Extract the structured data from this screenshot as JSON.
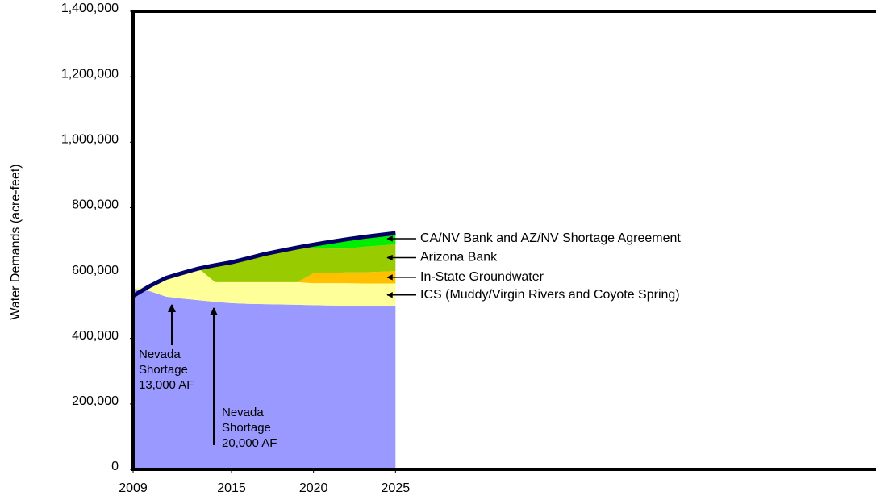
{
  "chart_data": {
    "type": "stacked_area",
    "y_label": "Water Demands (acre-feet)",
    "x": [
      2009,
      2010,
      2011,
      2012,
      2013,
      2014,
      2015,
      2016,
      2017,
      2018,
      2019,
      2020,
      2021,
      2022,
      2023,
      2024,
      2025
    ],
    "xlim": [
      2009,
      2054
    ],
    "xticks": [
      2009,
      2015,
      2020,
      2025
    ],
    "ylim": [
      0,
      1400000
    ],
    "yticks": [
      0,
      {
        "value": 200000,
        "label": "200,000"
      },
      {
        "value": 400000,
        "label": "400,000"
      },
      {
        "value": 600000,
        "label": "600,000"
      },
      {
        "value": 800000,
        "label": "800,000"
      },
      {
        "value": 1000000,
        "label": "1,000,000"
      },
      {
        "value": 1200000,
        "label": "1,200,000"
      },
      {
        "value": 1400000,
        "label": "1,400,000"
      }
    ],
    "series": [
      {
        "color": "#9999ff",
        "values": [
          552000,
          545000,
          528000,
          522000,
          517000,
          512000,
          508000,
          506000,
          505000,
          504000,
          503000,
          502000,
          501000,
          500000,
          499000,
          499000,
          498000
        ]
      },
      {
        "name": "ICS (Muddy/Virgin Rivers and Coyote Spring)",
        "color": "#ffff99",
        "values": [
          0,
          15000,
          57000,
          78000,
          97000,
          60000,
          64000,
          66000,
          67000,
          68000,
          69000,
          67000,
          68000,
          69000,
          69000,
          69000,
          70000
        ]
      },
      {
        "name": "In-State Groundwater",
        "color": "#ffc000",
        "values": [
          0,
          0,
          0,
          0,
          0,
          0,
          0,
          0,
          0,
          0,
          0,
          30000,
          31000,
          33000,
          34000,
          36000,
          38000
        ]
      },
      {
        "name": "Arizona Bank",
        "color": "#99cc00",
        "values": [
          0,
          0,
          0,
          0,
          0,
          52000,
          61000,
          73000,
          86000,
          96000,
          106000,
          78000,
          75000,
          73000,
          78000,
          80000,
          82000
        ]
      },
      {
        "name": "CA/NV Bank and AZ/NV Shortage Agreement",
        "color": "#00ee00",
        "values": [
          0,
          0,
          0,
          0,
          0,
          0,
          0,
          0,
          0,
          0,
          0,
          10000,
          20000,
          28000,
          30000,
          32000,
          34000
        ]
      }
    ],
    "total": {
      "color": "#000066",
      "values": [
        530000,
        560000,
        585000,
        600000,
        614000,
        624000,
        633000,
        645000,
        658000,
        668000,
        678000,
        687000,
        695000,
        703000,
        710000,
        716000,
        722000
      ]
    },
    "annotations": [
      {
        "lines": [
          "Nevada",
          "Shortage",
          "13,000 AF"
        ]
      },
      {
        "lines": [
          "Nevada",
          "Shortage",
          "20,000 AF"
        ]
      }
    ]
  }
}
